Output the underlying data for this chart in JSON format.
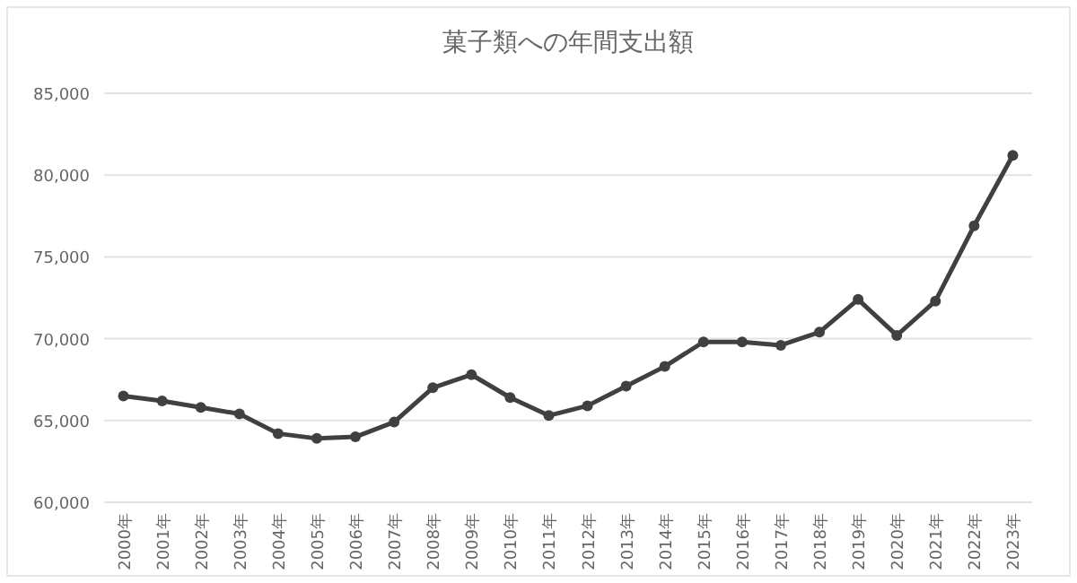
{
  "chart_data": {
    "type": "line",
    "title": "菓子類への年間支出額",
    "categories": [
      "2000年",
      "2001年",
      "2002年",
      "2003年",
      "2004年",
      "2005年",
      "2006年",
      "2007年",
      "2008年",
      "2009年",
      "2010年",
      "2011年",
      "2012年",
      "2013年",
      "2014年",
      "2015年",
      "2016年",
      "2017年",
      "2018年",
      "2019年",
      "2020年",
      "2021年",
      "2022年",
      "2023年"
    ],
    "series": [
      {
        "color": "#404040",
        "values": [
          66500,
          66200,
          65800,
          65400,
          64200,
          63900,
          64000,
          64900,
          67000,
          67800,
          66400,
          65300,
          65900,
          67100,
          68300,
          69800,
          69800,
          69600,
          70400,
          72400,
          70200,
          72300,
          76900,
          81200
        ]
      }
    ],
    "ylim": [
      60000,
      85000
    ],
    "yticks": [
      {
        "value": 60000,
        "label": "60,000"
      },
      {
        "value": 65000,
        "label": "65,000"
      },
      {
        "value": 70000,
        "label": "70,000"
      },
      {
        "value": 75000,
        "label": "75,000"
      },
      {
        "value": 80000,
        "label": "80,000"
      },
      {
        "value": 85000,
        "label": "85,000"
      }
    ],
    "grid": "y",
    "marker": "circle",
    "line_style": "solid"
  }
}
